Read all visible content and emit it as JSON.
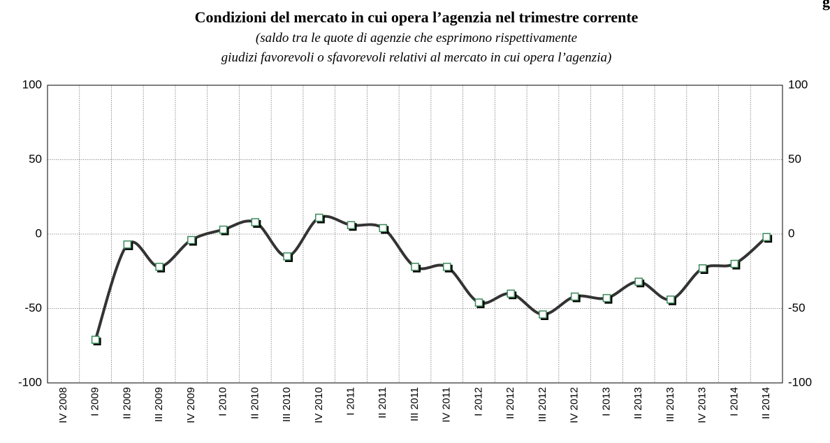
{
  "corner_label": "g",
  "chart_data": {
    "type": "line",
    "title": "Condizioni del mercato in cui opera l’agenzia nel trimestre corrente",
    "subtitle": [
      "(saldo tra le quote di agenzie che esprimono rispettivamente",
      "giudizi favorevoli o sfavorevoli relativi al mercato in cui opera l’agenzia)"
    ],
    "categories": [
      "IV 2008",
      "I 2009",
      "II 2009",
      "III 2009",
      "IV 2009",
      "I 2010",
      "II 2010",
      "III 2010",
      "IV 2010",
      "I 2011",
      "II 2011",
      "III 2011",
      "IV 2011",
      "I 2012",
      "II 2012",
      "III 2012",
      "IV 2012",
      "I 2013",
      "II 2013",
      "III 2013",
      "IV 2013",
      "I 2014",
      "II 2014"
    ],
    "values": [
      null,
      -71,
      -7,
      -22,
      -4,
      3,
      8,
      -15,
      11,
      6,
      4,
      -22,
      -22,
      -46,
      -40,
      -54,
      -42,
      -43,
      -32,
      -44,
      -23,
      -20,
      -2
    ],
    "color": "#333333",
    "marker_edge_color": "#3a8a5a",
    "ylim": [
      -100,
      100
    ],
    "yticks": [
      -100,
      -50,
      0,
      50,
      100
    ],
    "grid": true
  }
}
